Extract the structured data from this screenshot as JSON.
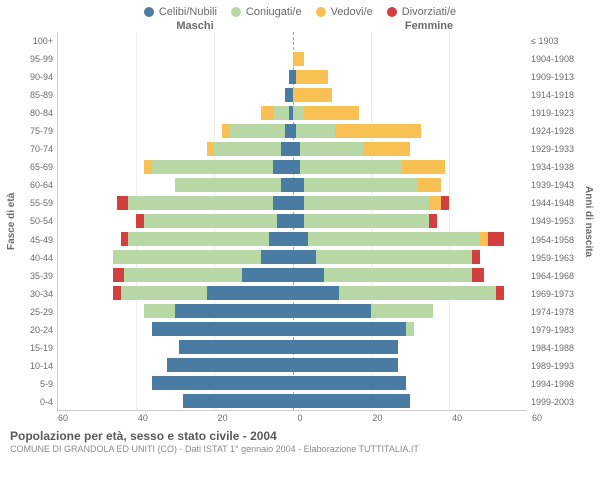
{
  "legend": {
    "items": [
      {
        "label": "Celibi/Nubili",
        "color": "#4a7ca3"
      },
      {
        "label": "Coniugati/e",
        "color": "#b7d8a5"
      },
      {
        "label": "Vedovi/e",
        "color": "#f9c154"
      },
      {
        "label": "Divorziati/e",
        "color": "#d13f3f"
      }
    ]
  },
  "gender": {
    "left": "Maschi",
    "right": "Femmine"
  },
  "axis": {
    "left_title": "Fasce di età",
    "right_title": "Anni di nascita",
    "x_ticks": [
      "60",
      "40",
      "20",
      "0",
      "20",
      "40",
      "60"
    ],
    "x_max": 60
  },
  "age_bands": [
    "100+",
    "95-99",
    "90-94",
    "85-89",
    "80-84",
    "75-79",
    "70-74",
    "65-69",
    "60-64",
    "55-59",
    "50-54",
    "45-49",
    "40-44",
    "35-39",
    "30-34",
    "25-29",
    "20-24",
    "15-19",
    "10-14",
    "5-9",
    "0-4"
  ],
  "birth_years": [
    "≤ 1903",
    "1904-1908",
    "1909-1913",
    "1914-1918",
    "1919-1923",
    "1924-1928",
    "1929-1933",
    "1934-1938",
    "1939-1943",
    "1944-1948",
    "1949-1953",
    "1954-1958",
    "1959-1963",
    "1964-1968",
    "1969-1973",
    "1974-1978",
    "1979-1983",
    "1984-1988",
    "1989-1993",
    "1994-1998",
    "1999-2003"
  ],
  "colors": {
    "single": "#4a7ca3",
    "married": "#b7d8a5",
    "widowed": "#f9c154",
    "divorced": "#d13f3f",
    "grid": "#eeeeee",
    "center": "#aaaaaa",
    "bg": "#ffffff"
  },
  "data": [
    {
      "m": {
        "s": 0,
        "c": 0,
        "w": 0,
        "d": 0
      },
      "f": {
        "s": 0,
        "c": 0,
        "w": 0,
        "d": 0
      }
    },
    {
      "m": {
        "s": 0,
        "c": 0,
        "w": 0,
        "d": 0
      },
      "f": {
        "s": 0,
        "c": 0,
        "w": 3,
        "d": 0
      }
    },
    {
      "m": {
        "s": 1,
        "c": 0,
        "w": 0,
        "d": 0
      },
      "f": {
        "s": 1,
        "c": 0,
        "w": 8,
        "d": 0
      }
    },
    {
      "m": {
        "s": 2,
        "c": 0,
        "w": 0,
        "d": 0
      },
      "f": {
        "s": 0,
        "c": 0,
        "w": 10,
        "d": 0
      }
    },
    {
      "m": {
        "s": 1,
        "c": 4,
        "w": 3,
        "d": 0
      },
      "f": {
        "s": 0,
        "c": 3,
        "w": 14,
        "d": 0
      }
    },
    {
      "m": {
        "s": 2,
        "c": 14,
        "w": 2,
        "d": 0
      },
      "f": {
        "s": 1,
        "c": 10,
        "w": 22,
        "d": 0
      }
    },
    {
      "m": {
        "s": 3,
        "c": 17,
        "w": 2,
        "d": 0
      },
      "f": {
        "s": 2,
        "c": 16,
        "w": 12,
        "d": 0
      }
    },
    {
      "m": {
        "s": 5,
        "c": 31,
        "w": 2,
        "d": 0
      },
      "f": {
        "s": 2,
        "c": 26,
        "w": 11,
        "d": 0
      }
    },
    {
      "m": {
        "s": 3,
        "c": 27,
        "w": 0,
        "d": 0
      },
      "f": {
        "s": 3,
        "c": 29,
        "w": 6,
        "d": 0
      }
    },
    {
      "m": {
        "s": 5,
        "c": 37,
        "w": 0,
        "d": 3
      },
      "f": {
        "s": 3,
        "c": 32,
        "w": 3,
        "d": 2
      }
    },
    {
      "m": {
        "s": 4,
        "c": 34,
        "w": 0,
        "d": 2
      },
      "f": {
        "s": 3,
        "c": 32,
        "w": 0,
        "d": 2
      }
    },
    {
      "m": {
        "s": 6,
        "c": 36,
        "w": 0,
        "d": 2
      },
      "f": {
        "s": 4,
        "c": 44,
        "w": 2,
        "d": 4
      }
    },
    {
      "m": {
        "s": 8,
        "c": 38,
        "w": 0,
        "d": 0
      },
      "f": {
        "s": 6,
        "c": 40,
        "w": 0,
        "d": 2
      }
    },
    {
      "m": {
        "s": 13,
        "c": 30,
        "w": 0,
        "d": 3
      },
      "f": {
        "s": 8,
        "c": 38,
        "w": 0,
        "d": 3
      }
    },
    {
      "m": {
        "s": 22,
        "c": 22,
        "w": 0,
        "d": 2
      },
      "f": {
        "s": 12,
        "c": 40,
        "w": 0,
        "d": 2
      }
    },
    {
      "m": {
        "s": 30,
        "c": 8,
        "w": 0,
        "d": 0
      },
      "f": {
        "s": 20,
        "c": 16,
        "w": 0,
        "d": 0
      }
    },
    {
      "m": {
        "s": 36,
        "c": 0,
        "w": 0,
        "d": 0
      },
      "f": {
        "s": 29,
        "c": 2,
        "w": 0,
        "d": 0
      }
    },
    {
      "m": {
        "s": 29,
        "c": 0,
        "w": 0,
        "d": 0
      },
      "f": {
        "s": 27,
        "c": 0,
        "w": 0,
        "d": 0
      }
    },
    {
      "m": {
        "s": 32,
        "c": 0,
        "w": 0,
        "d": 0
      },
      "f": {
        "s": 27,
        "c": 0,
        "w": 0,
        "d": 0
      }
    },
    {
      "m": {
        "s": 36,
        "c": 0,
        "w": 0,
        "d": 0
      },
      "f": {
        "s": 29,
        "c": 0,
        "w": 0,
        "d": 0
      }
    },
    {
      "m": {
        "s": 28,
        "c": 0,
        "w": 0,
        "d": 0
      },
      "f": {
        "s": 30,
        "c": 0,
        "w": 0,
        "d": 0
      }
    }
  ],
  "footer": {
    "title": "Popolazione per età, sesso e stato civile - 2004",
    "subtitle": "COMUNE DI GRANDOLA ED UNITI (CO) - Dati ISTAT 1° gennaio 2004 - Elaborazione TUTTITALIA.IT"
  }
}
